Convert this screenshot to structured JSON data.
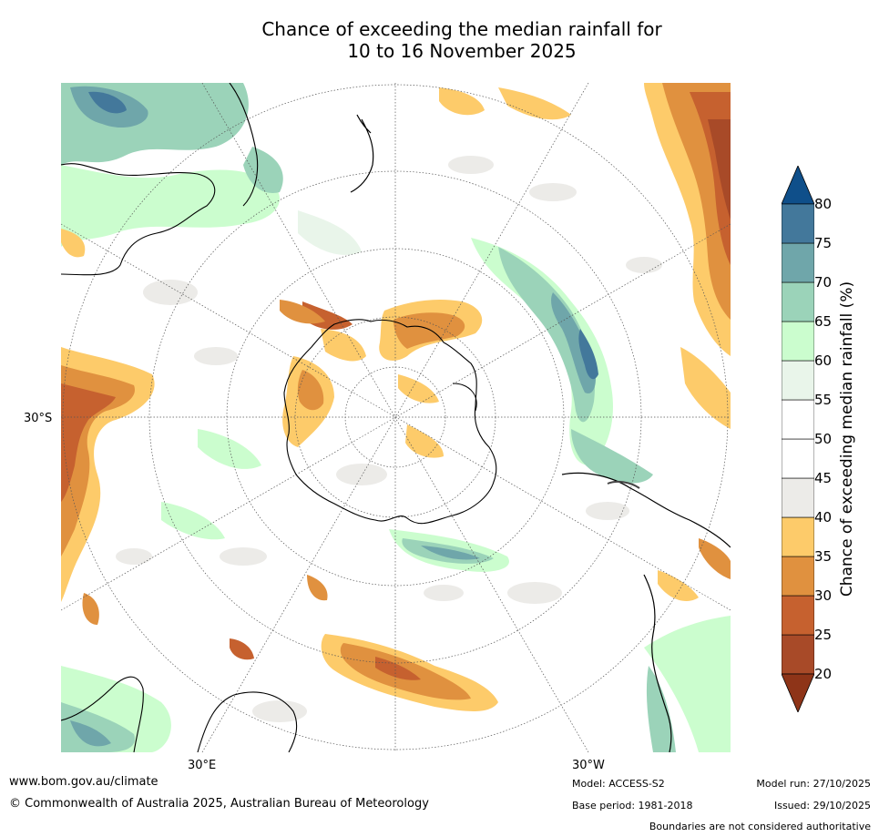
{
  "title": {
    "line1": "Chance of exceeding the median rainfall for",
    "line2": "10 to 16 November 2025"
  },
  "map": {
    "lat_label": "30°S",
    "lon_label_east": "30°E",
    "lon_label_west": "30°W"
  },
  "colorbar": {
    "label": "Chance of exceeding median rainfall (%)",
    "ticks": [
      "20",
      "25",
      "30",
      "35",
      "40",
      "45",
      "50",
      "55",
      "60",
      "65",
      "70",
      "75",
      "80"
    ],
    "colors": [
      "#a84a28",
      "#c6612f",
      "#e0913f",
      "#fdcb6a",
      "#ecebe8",
      "#ffffff",
      "#ffffff",
      "#e9f5ea",
      "#cbfdce",
      "#9bd3b9",
      "#6fa6aa",
      "#43789b"
    ],
    "low_extension_color": "#8e3418",
    "high_extension_color": "#0f4f8a"
  },
  "footer": {
    "url": "www.bom.gov.au/climate",
    "copyright": "© Commonwealth of Australia 2025, Australian Bureau of Meteorology",
    "model": "Model: ACCESS-S2",
    "base_period": "Base period: 1981-2018",
    "model_run": "Model run: 27/10/2025",
    "issued": "Issued: 29/10/2025",
    "disclaimer": "Boundaries are not considered authoritative"
  }
}
